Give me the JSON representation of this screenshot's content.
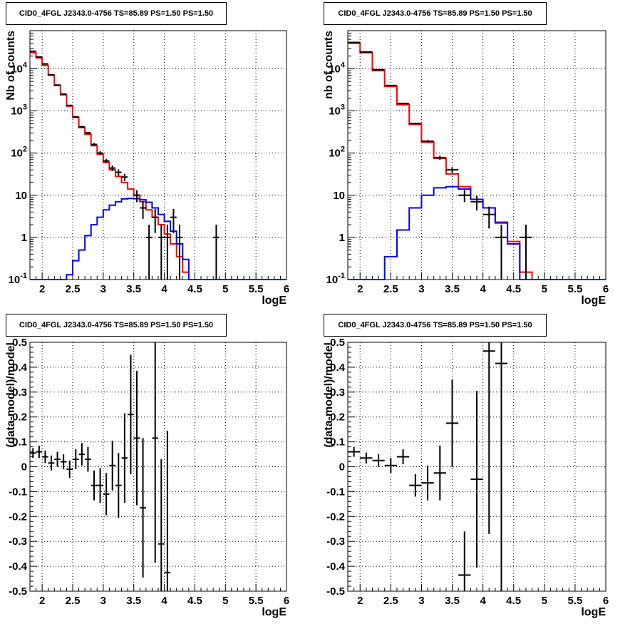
{
  "chart_data": [
    {
      "type": "step-histogram",
      "title": "CID0_4FGL J2343.0-4756 TS=85.89 PS=1.50 PS=1.50",
      "xlabel": "logE",
      "ylabel": "Nb of counts",
      "xlim": [
        1.8,
        6.0
      ],
      "ylim": [
        0.1,
        80000
      ],
      "yscale": "log",
      "grid": true,
      "xticks": [
        "2",
        "2.5",
        "3",
        "3.5",
        "4",
        "4.5",
        "5",
        "5.5",
        "6"
      ],
      "yticks": [
        "10^-1",
        "1",
        "10",
        "10^2",
        "10^3",
        "10^4"
      ],
      "bin_edges": [
        1.8,
        1.9,
        2.0,
        2.1,
        2.2,
        2.3,
        2.4,
        2.5,
        2.6,
        2.7,
        2.8,
        2.9,
        3.0,
        3.1,
        3.2,
        3.3,
        3.4,
        3.5,
        3.6,
        3.7,
        3.8,
        3.9,
        4.0,
        4.1,
        4.2,
        4.3,
        4.4,
        4.5,
        4.6,
        4.7,
        4.8,
        4.9,
        5.0,
        5.1,
        5.2,
        5.3,
        5.4,
        5.5,
        5.6,
        5.7,
        5.8,
        5.9,
        6.0
      ],
      "series": [
        {
          "color": "#ff0000",
          "values": [
            24000,
            18000,
            12000,
            7000,
            4000,
            2400,
            1300,
            700,
            400,
            280,
            150,
            95,
            60,
            40,
            28,
            20,
            14,
            10,
            7,
            4.5,
            3.0,
            2.0,
            1.2,
            0.7,
            0.35,
            0.15,
            0.1,
            0.1,
            0.1,
            0.1,
            0.1,
            0.1,
            0.1,
            0.1,
            0.1,
            0.1,
            0.1,
            0.1,
            0.1,
            0.1,
            0.1,
            0.1
          ]
        },
        {
          "color": "#0000ff",
          "values": [
            0.1,
            0.1,
            0.1,
            0.1,
            0.1,
            0.1,
            0.13,
            0.28,
            0.5,
            1.1,
            2.0,
            3.0,
            4.5,
            5.8,
            7.0,
            8.2,
            8.4,
            8.3,
            7.8,
            6.8,
            5.0,
            3.5,
            2.4,
            1.4,
            0.7,
            0.3,
            0.1,
            0.1,
            0.1,
            0.1,
            0.1,
            0.1,
            0.1,
            0.1,
            0.1,
            0.1,
            0.1,
            0.1,
            0.1,
            0.1,
            0.1,
            0.1
          ]
        },
        {
          "color": "#000000",
          "values": [
            26000,
            19000,
            13000,
            7200,
            4100,
            2500,
            1350,
            720,
            420,
            300,
            160,
            100,
            65,
            44,
            35,
            27,
            0,
            10,
            5,
            1,
            3,
            1,
            1,
            3,
            1,
            0,
            0,
            0,
            0,
            0,
            1,
            0,
            0,
            0,
            0,
            0,
            0,
            0,
            0,
            0,
            0,
            0
          ]
        }
      ]
    },
    {
      "type": "step-histogram",
      "title": "CID0_4FGL J2343.0-4756 TS=85.89 PS=1.50 PS=1.50",
      "xlabel": "logE",
      "ylabel": "nb of counts",
      "xlim": [
        1.8,
        6.0
      ],
      "ylim": [
        0.1,
        80000
      ],
      "yscale": "log",
      "grid": true,
      "xticks": [
        "2",
        "2.5",
        "3",
        "3.5",
        "4",
        "4.5",
        "5",
        "5.5",
        "6"
      ],
      "yticks": [
        "10^-1",
        "1",
        "10",
        "10^2",
        "10^3",
        "10^4"
      ],
      "bin_edges": [
        1.8,
        2.0,
        2.2,
        2.4,
        2.6,
        2.8,
        3.0,
        3.2,
        3.4,
        3.6,
        3.8,
        4.0,
        4.2,
        4.4,
        4.6,
        4.8,
        5.0,
        5.2,
        5.4,
        5.6,
        5.8,
        6.0
      ],
      "series": [
        {
          "color": "#ff0000",
          "values": [
            40000,
            24000,
            9000,
            3800,
            1400,
            480,
            180,
            75,
            32,
            16,
            8,
            5,
            2.3,
            0.8,
            0.15,
            0.1,
            0.1,
            0.1,
            0.1,
            0.1,
            0.1
          ]
        },
        {
          "color": "#0000ff",
          "values": [
            0.1,
            0.1,
            0.1,
            0.35,
            1.5,
            5.0,
            10,
            15,
            16,
            14,
            8,
            5,
            2.2,
            0.7,
            0.1,
            0.1,
            0.1,
            0.1,
            0.1,
            0.1,
            0.1
          ]
        },
        {
          "color": "#000000",
          "values": [
            42000,
            25000,
            9500,
            4000,
            1500,
            500,
            190,
            78,
            40,
            10,
            7,
            3.5,
            1,
            0,
            1,
            0,
            0,
            0,
            0,
            0,
            0
          ]
        }
      ]
    },
    {
      "type": "scatter-errorbar",
      "title": "CID0_4FGL J2343.0-4756 TS=85.89 PS=1.50 PS=1.50",
      "xlabel": "logE",
      "ylabel": "(data-model)/model",
      "xlim": [
        1.8,
        6.0
      ],
      "ylim": [
        -0.5,
        0.5
      ],
      "grid": true,
      "xticks": [
        "2",
        "2.5",
        "3",
        "3.5",
        "4",
        "4.5",
        "5",
        "5.5",
        "6"
      ],
      "yticks": [
        "-0.5",
        "-0.4",
        "-0.3",
        "-0.2",
        "-0.1",
        "0",
        "0.1",
        "0.2",
        "0.3",
        "0.4",
        "0.5"
      ],
      "points": [
        {
          "x": 1.85,
          "y": 0.055,
          "err": 0.02
        },
        {
          "x": 1.95,
          "y": 0.06,
          "err": 0.025
        },
        {
          "x": 2.05,
          "y": 0.04,
          "err": 0.025
        },
        {
          "x": 2.15,
          "y": 0.015,
          "err": 0.03
        },
        {
          "x": 2.25,
          "y": 0.03,
          "err": 0.03
        },
        {
          "x": 2.35,
          "y": 0.02,
          "err": 0.03
        },
        {
          "x": 2.45,
          "y": -0.01,
          "err": 0.035
        },
        {
          "x": 2.55,
          "y": 0.03,
          "err": 0.04
        },
        {
          "x": 2.65,
          "y": 0.05,
          "err": 0.045
        },
        {
          "x": 2.75,
          "y": 0.03,
          "err": 0.05
        },
        {
          "x": 2.85,
          "y": -0.075,
          "err": 0.06
        },
        {
          "x": 2.95,
          "y": -0.075,
          "err": 0.07
        },
        {
          "x": 3.05,
          "y": -0.11,
          "err": 0.085
        },
        {
          "x": 3.15,
          "y": 0.005,
          "err": 0.1
        },
        {
          "x": 3.25,
          "y": -0.075,
          "err": 0.13
        },
        {
          "x": 3.35,
          "y": 0.035,
          "err": 0.18
        },
        {
          "x": 3.45,
          "y": 0.21,
          "err": 0.24
        },
        {
          "x": 3.55,
          "y": 0.115,
          "err": 0.27
        },
        {
          "x": 3.65,
          "y": -0.165,
          "err": 0.28
        },
        {
          "x": 3.85,
          "y": 0.115,
          "err": 0.5
        },
        {
          "x": 3.95,
          "y": -0.31,
          "err": 0.34
        },
        {
          "x": 4.05,
          "y": -0.425,
          "err": 0.57
        }
      ]
    },
    {
      "type": "scatter-errorbar",
      "title": "CID0_4FGL J2343.0-4756 TS=85.89 PS=1.50 PS=1.50",
      "xlabel": "logE",
      "ylabel": "(data-model)/model",
      "xlim": [
        1.8,
        6.0
      ],
      "ylim": [
        -0.5,
        0.5
      ],
      "grid": true,
      "xticks": [
        "2",
        "2.5",
        "3",
        "3.5",
        "4",
        "4.5",
        "5",
        "5.5",
        "6"
      ],
      "yticks": [
        "-0.5",
        "-0.4",
        "-0.3",
        "-0.2",
        "-0.1",
        "0",
        "0.1",
        "0.2",
        "0.3",
        "0.4",
        "0.5"
      ],
      "points": [
        {
          "x": 1.9,
          "y": 0.06,
          "err": 0.02
        },
        {
          "x": 2.1,
          "y": 0.035,
          "err": 0.022
        },
        {
          "x": 2.3,
          "y": 0.025,
          "err": 0.025
        },
        {
          "x": 2.5,
          "y": 0.005,
          "err": 0.03
        },
        {
          "x": 2.7,
          "y": 0.04,
          "err": 0.03
        },
        {
          "x": 2.9,
          "y": -0.075,
          "err": 0.045
        },
        {
          "x": 3.1,
          "y": -0.065,
          "err": 0.07
        },
        {
          "x": 3.3,
          "y": -0.025,
          "err": 0.11
        },
        {
          "x": 3.5,
          "y": 0.175,
          "err": 0.175
        },
        {
          "x": 3.7,
          "y": -0.435,
          "err": 0.175
        },
        {
          "x": 3.9,
          "y": -0.05,
          "err": 0.355
        },
        {
          "x": 4.1,
          "y": 0.465,
          "err": 0.735
        },
        {
          "x": 4.3,
          "y": 0.415,
          "err": 0.95
        }
      ]
    }
  ]
}
